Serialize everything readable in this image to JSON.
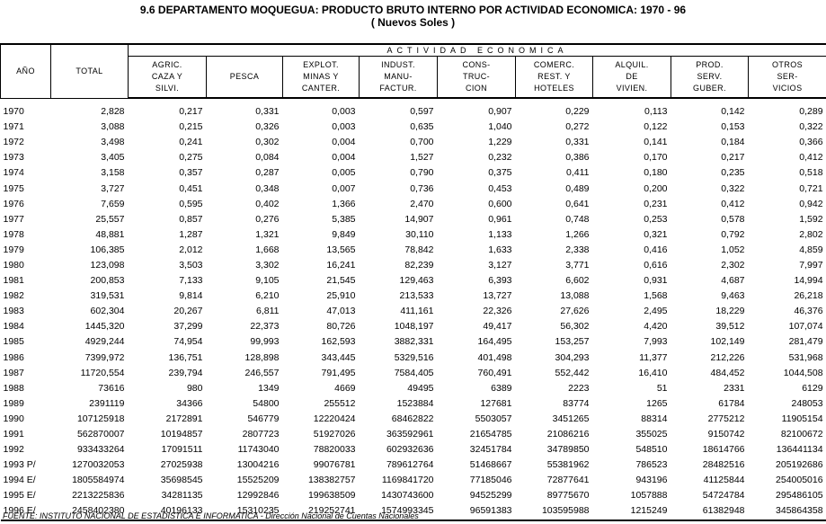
{
  "title": "9.6  DEPARTAMENTO MOQUEGUA:  PRODUCTO BRUTO INTERNO POR ACTIVIDAD ECONOMICA: 1970 - 96",
  "subtitle": "( Nuevos Soles )",
  "headers": {
    "year": "AÑO",
    "total": "TOTAL",
    "activity_group": "ACTIVIDAD  ECONOMICA",
    "activities": [
      [
        "AGRIC.",
        "CAZA Y",
        "SILVI."
      ],
      [
        "PESCA"
      ],
      [
        "EXPLOT.",
        "MINAS Y",
        "CANTER."
      ],
      [
        "INDUST.",
        "MANU-",
        "FACTUR."
      ],
      [
        "CONS-",
        "TRUC-",
        "CION"
      ],
      [
        "COMERC.",
        "REST. Y",
        "HOTELES"
      ],
      [
        "ALQUIL.",
        "DE",
        "VIVIEN."
      ],
      [
        "PROD.",
        "SERV.",
        "GUBER."
      ],
      [
        "OTROS",
        "SER-",
        "VICIOS"
      ]
    ]
  },
  "rows": [
    [
      "1970",
      "2,828",
      "0,217",
      "0,331",
      "0,003",
      "0,597",
      "0,907",
      "0,229",
      "0,113",
      "0,142",
      "0,289"
    ],
    [
      "1971",
      "3,088",
      "0,215",
      "0,326",
      "0,003",
      "0,635",
      "1,040",
      "0,272",
      "0,122",
      "0,153",
      "0,322"
    ],
    [
      "1972",
      "3,498",
      "0,241",
      "0,302",
      "0,004",
      "0,700",
      "1,229",
      "0,331",
      "0,141",
      "0,184",
      "0,366"
    ],
    [
      "1973",
      "3,405",
      "0,275",
      "0,084",
      "0,004",
      "1,527",
      "0,232",
      "0,386",
      "0,170",
      "0,217",
      "0,412"
    ],
    [
      "1974",
      "3,158",
      "0,357",
      "0,287",
      "0,005",
      "0,790",
      "0,375",
      "0,411",
      "0,180",
      "0,235",
      "0,518"
    ],
    [
      "1975",
      "3,727",
      "0,451",
      "0,348",
      "0,007",
      "0,736",
      "0,453",
      "0,489",
      "0,200",
      "0,322",
      "0,721"
    ],
    [
      "1976",
      "7,659",
      "0,595",
      "0,402",
      "1,366",
      "2,470",
      "0,600",
      "0,641",
      "0,231",
      "0,412",
      "0,942"
    ],
    [
      "1977",
      "25,557",
      "0,857",
      "0,276",
      "5,385",
      "14,907",
      "0,961",
      "0,748",
      "0,253",
      "0,578",
      "1,592"
    ],
    [
      "1978",
      "48,881",
      "1,287",
      "1,321",
      "9,849",
      "30,110",
      "1,133",
      "1,266",
      "0,321",
      "0,792",
      "2,802"
    ],
    [
      "1979",
      "106,385",
      "2,012",
      "1,668",
      "13,565",
      "78,842",
      "1,633",
      "2,338",
      "0,416",
      "1,052",
      "4,859"
    ],
    [
      "1980",
      "123,098",
      "3,503",
      "3,302",
      "16,241",
      "82,239",
      "3,127",
      "3,771",
      "0,616",
      "2,302",
      "7,997"
    ],
    [
      "1981",
      "200,853",
      "7,133",
      "9,105",
      "21,545",
      "129,463",
      "6,393",
      "6,602",
      "0,931",
      "4,687",
      "14,994"
    ],
    [
      "1982",
      "319,531",
      "9,814",
      "6,210",
      "25,910",
      "213,533",
      "13,727",
      "13,088",
      "1,568",
      "9,463",
      "26,218"
    ],
    [
      "1983",
      "602,304",
      "20,267",
      "6,811",
      "47,013",
      "411,161",
      "22,326",
      "27,626",
      "2,495",
      "18,229",
      "46,376"
    ],
    [
      "1984",
      "1445,320",
      "37,299",
      "22,373",
      "80,726",
      "1048,197",
      "49,417",
      "56,302",
      "4,420",
      "39,512",
      "107,074"
    ],
    [
      "1985",
      "4929,244",
      "74,954",
      "99,993",
      "162,593",
      "3882,331",
      "164,495",
      "153,257",
      "7,993",
      "102,149",
      "281,479"
    ],
    [
      "1986",
      "7399,972",
      "136,751",
      "128,898",
      "343,445",
      "5329,516",
      "401,498",
      "304,293",
      "11,377",
      "212,226",
      "531,968"
    ],
    [
      "1987",
      "11720,554",
      "239,794",
      "246,557",
      "791,495",
      "7584,405",
      "760,491",
      "552,442",
      "16,410",
      "484,452",
      "1044,508"
    ],
    [
      "1988",
      "73616",
      "980",
      "1349",
      "4669",
      "49495",
      "6389",
      "2223",
      "51",
      "2331",
      "6129"
    ],
    [
      "1989",
      "2391119",
      "34366",
      "54800",
      "255512",
      "1523884",
      "127681",
      "83774",
      "1265",
      "61784",
      "248053"
    ],
    [
      "1990",
      "107125918",
      "2172891",
      "546779",
      "12220424",
      "68462822",
      "5503057",
      "3451265",
      "88314",
      "2775212",
      "11905154"
    ],
    [
      "1991",
      "562870007",
      "10194857",
      "2807723",
      "51927026",
      "363592961",
      "21654785",
      "21086216",
      "355025",
      "9150742",
      "82100672"
    ],
    [
      "1992",
      "933433264",
      "17091511",
      "11743040",
      "78820033",
      "602932636",
      "32451784",
      "34789850",
      "548510",
      "18614766",
      "136441134"
    ],
    [
      "1993 P/",
      "1270032053",
      "27025938",
      "13004216",
      "99076781",
      "789612764",
      "51468667",
      "55381962",
      "786523",
      "28482516",
      "205192686"
    ],
    [
      "1994 E/",
      "1805584974",
      "35698545",
      "15525209",
      "138382757",
      "1169841720",
      "77185046",
      "72877641",
      "943196",
      "41125844",
      "254005016"
    ],
    [
      "1995 E/",
      "2213225836",
      "34281135",
      "12992846",
      "199638509",
      "1430743600",
      "94525299",
      "89775670",
      "1057888",
      "54724784",
      "295486105"
    ],
    [
      "1996 E/",
      "2458402380",
      "40196133",
      "15310235",
      "219252741",
      "1574993345",
      "96591383",
      "103595988",
      "1215249",
      "61382948",
      "345864358"
    ]
  ],
  "source": "FUENTE: INSTITUTO NACIONAL DE ESTADISTICA E INFORMATICA - Dirección Nacional de Cuentas Nacionales"
}
